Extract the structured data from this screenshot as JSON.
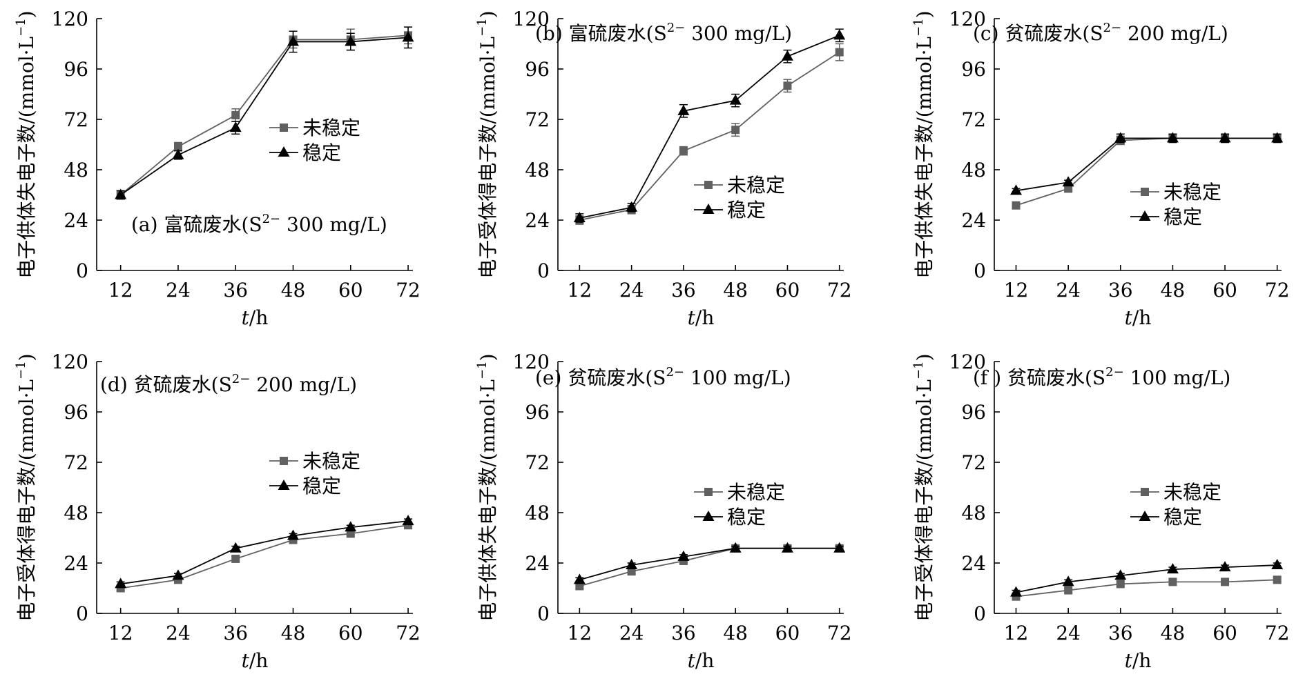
{
  "chart_data": [
    {
      "type": "line",
      "panel_label": "(a) 富硫废水(S",
      "panel_label_sup": "2−",
      "panel_label_tail": " 300 mg/L)",
      "ylabel": "电子供体失电子数/(mmol·L",
      "ylabel_sup": "−1",
      "ylabel_tail": ")",
      "xlabel": "t/h",
      "xlabel_italic": "t",
      "xlabel_rest": "/h",
      "x": [
        12,
        24,
        36,
        48,
        60,
        72
      ],
      "xticks": [
        "12",
        "24",
        "36",
        "48",
        "60",
        "72"
      ],
      "yticks": [
        "0",
        "24",
        "48",
        "72",
        "96",
        "120"
      ],
      "ylim": [
        0,
        120
      ],
      "legend_position": "middle-right",
      "series": [
        {
          "name": "未稳定",
          "marker": "square",
          "color": "#606060",
          "values": [
            36,
            59,
            74,
            110,
            110,
            112
          ],
          "errors": [
            2,
            2,
            3,
            4,
            5,
            4
          ]
        },
        {
          "name": "稳定",
          "marker": "triangle",
          "color": "#000000",
          "values": [
            36,
            55,
            68,
            109,
            109,
            111
          ],
          "errors": [
            2,
            2,
            3,
            5,
            4,
            5
          ]
        }
      ]
    },
    {
      "type": "line",
      "panel_label": "(b) 富硫废水(S",
      "panel_label_sup": "2−",
      "panel_label_tail": " 300 mg/L)",
      "ylabel": "电子受体得电子数/(mmol·L",
      "ylabel_sup": "−1",
      "ylabel_tail": ")",
      "xlabel": "t/h",
      "xlabel_italic": "t",
      "xlabel_rest": "/h",
      "x": [
        12,
        24,
        36,
        48,
        60,
        72
      ],
      "xticks": [
        "12",
        "24",
        "36",
        "48",
        "60",
        "72"
      ],
      "yticks": [
        "0",
        "24",
        "48",
        "72",
        "96",
        "120"
      ],
      "ylim": [
        0,
        120
      ],
      "legend_position": "lower-right",
      "series": [
        {
          "name": "未稳定",
          "marker": "square",
          "color": "#606060",
          "values": [
            24,
            29,
            57,
            67,
            88,
            104
          ],
          "errors": [
            2,
            2,
            2,
            3,
            3,
            4
          ]
        },
        {
          "name": "稳定",
          "marker": "triangle",
          "color": "#000000",
          "values": [
            25,
            30,
            76,
            81,
            102,
            112
          ],
          "errors": [
            2,
            2,
            3,
            3,
            3,
            3
          ]
        }
      ]
    },
    {
      "type": "line",
      "panel_label": "(c) 贫硫废水(S",
      "panel_label_sup": "2−",
      "panel_label_tail": " 200 mg/L)",
      "ylabel": "电子供体失电子数/(mmol·L",
      "ylabel_sup": "−1",
      "ylabel_tail": ")",
      "xlabel": "t/h",
      "xlabel_italic": "t",
      "xlabel_rest": "/h",
      "x": [
        12,
        24,
        36,
        48,
        60,
        72
      ],
      "xticks": [
        "12",
        "24",
        "36",
        "48",
        "60",
        "72"
      ],
      "yticks": [
        "0",
        "24",
        "48",
        "72",
        "96",
        "120"
      ],
      "ylim": [
        0,
        120
      ],
      "legend_position": "lower-right",
      "series": [
        {
          "name": "未稳定",
          "marker": "square",
          "color": "#606060",
          "values": [
            31,
            39,
            62,
            63,
            63,
            63
          ],
          "errors": [
            1,
            1,
            2,
            2,
            2,
            2
          ]
        },
        {
          "name": "稳定",
          "marker": "triangle",
          "color": "#000000",
          "values": [
            38,
            42,
            63,
            63,
            63,
            63
          ],
          "errors": [
            1,
            1,
            2,
            2,
            2,
            2
          ]
        }
      ]
    },
    {
      "type": "line",
      "panel_label": "(d) 贫硫废水(S",
      "panel_label_sup": "2−",
      "panel_label_tail": " 200 mg/L)",
      "ylabel": "电子受体得电子数/(mmol·L",
      "ylabel_sup": "−1",
      "ylabel_tail": ")",
      "xlabel": "t/h",
      "xlabel_italic": "t",
      "xlabel_rest": "/h",
      "x": [
        12,
        24,
        36,
        48,
        60,
        72
      ],
      "xticks": [
        "12",
        "24",
        "36",
        "48",
        "60",
        "72"
      ],
      "yticks": [
        "0",
        "24",
        "48",
        "72",
        "96",
        "120"
      ],
      "ylim": [
        0,
        120
      ],
      "legend_position": "middle-right",
      "series": [
        {
          "name": "未稳定",
          "marker": "square",
          "color": "#606060",
          "values": [
            12,
            16,
            26,
            35,
            38,
            42
          ],
          "errors": [
            1,
            1,
            1,
            1,
            1,
            1
          ]
        },
        {
          "name": "稳定",
          "marker": "triangle",
          "color": "#000000",
          "values": [
            14,
            18,
            31,
            37,
            41,
            44
          ],
          "errors": [
            1,
            1,
            1,
            1,
            1,
            1
          ]
        }
      ]
    },
    {
      "type": "line",
      "panel_label": "(e) 贫硫废水(S",
      "panel_label_sup": "2−",
      "panel_label_tail": " 100 mg/L)",
      "ylabel": "电子供体失电子数/(mmol·L",
      "ylabel_sup": "−1",
      "ylabel_tail": ")",
      "xlabel": "t/h",
      "xlabel_italic": "t",
      "xlabel_rest": "/h",
      "x": [
        12,
        24,
        36,
        48,
        60,
        72
      ],
      "xticks": [
        "12",
        "24",
        "36",
        "48",
        "60",
        "72"
      ],
      "yticks": [
        "0",
        "24",
        "48",
        "72",
        "96",
        "120"
      ],
      "ylim": [
        0,
        120
      ],
      "legend_position": "middle-right",
      "series": [
        {
          "name": "未稳定",
          "marker": "square",
          "color": "#606060",
          "values": [
            13,
            20,
            25,
            31,
            31,
            31
          ],
          "errors": [
            1,
            1,
            1,
            1,
            1,
            1
          ]
        },
        {
          "name": "稳定",
          "marker": "triangle",
          "color": "#000000",
          "values": [
            16,
            23,
            27,
            31,
            31,
            31
          ],
          "errors": [
            1,
            1,
            1,
            1,
            1,
            1
          ]
        }
      ]
    },
    {
      "type": "line",
      "panel_label": "(f ) 贫硫废水(S",
      "panel_label_sup": "2−",
      "panel_label_tail": " 100 mg/L)",
      "ylabel": "电子受体得电子数/(mmol·L",
      "ylabel_sup": "−1",
      "ylabel_tail": ")",
      "xlabel": "t/h",
      "xlabel_italic": "t",
      "xlabel_rest": "/h",
      "x": [
        12,
        24,
        36,
        48,
        60,
        72
      ],
      "xticks": [
        "12",
        "24",
        "36",
        "48",
        "60",
        "72"
      ],
      "yticks": [
        "0",
        "24",
        "48",
        "72",
        "96",
        "120"
      ],
      "ylim": [
        0,
        120
      ],
      "legend_position": "middle-right",
      "series": [
        {
          "name": "未稳定",
          "marker": "square",
          "color": "#606060",
          "values": [
            8,
            11,
            14,
            15,
            15,
            16
          ],
          "errors": [
            1,
            1,
            1,
            1,
            1,
            1
          ]
        },
        {
          "name": "稳定",
          "marker": "triangle",
          "color": "#000000",
          "values": [
            10,
            15,
            18,
            21,
            22,
            23
          ],
          "errors": [
            1,
            1,
            1,
            1,
            1,
            1
          ]
        }
      ]
    }
  ]
}
